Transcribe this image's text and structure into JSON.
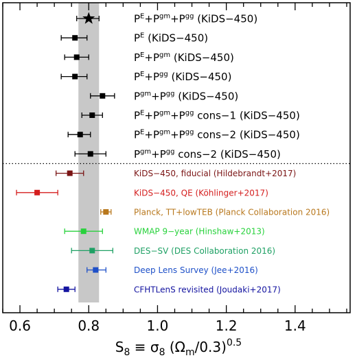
{
  "chart_data": {
    "type": "scatter",
    "subtype": "whisker-plot-with-horizontal-error-bars",
    "xlim": [
      0.55,
      1.56
    ],
    "xticks": [
      0.6,
      0.8,
      1.0,
      1.2,
      1.4
    ],
    "xtick_labels": [
      "0.6",
      "0.8",
      "1.0",
      "1.2",
      "1.4"
    ],
    "xlabel": {
      "base": "S",
      "sub": "8",
      "mid": " ≡ σ",
      "sub2": "8",
      "tail": " (Ω",
      "sub3": "m",
      "end": "/0.3)",
      "sup": "0.5"
    },
    "highlight_band": {
      "xmin": 0.77,
      "xmax": 0.83,
      "color": "#c8c8c8"
    },
    "separator_after_row": 8,
    "rows": [
      {
        "x": 0.8,
        "xerr_low": 0.035,
        "xerr_high": 0.03,
        "marker": "star",
        "color": "#000000",
        "label": [
          {
            "t": "P"
          },
          {
            "t": "E",
            "sup": 1
          },
          {
            "t": "+P"
          },
          {
            "t": "gm",
            "sup": 1
          },
          {
            "t": "+P"
          },
          {
            "t": "gg",
            "sup": 1
          },
          {
            "t": " (KiDS−450)"
          }
        ]
      },
      {
        "x": 0.76,
        "xerr_low": 0.04,
        "xerr_high": 0.035,
        "marker": "square",
        "color": "#000000",
        "label": [
          {
            "t": "P"
          },
          {
            "t": "E",
            "sup": 1
          },
          {
            "t": " (KiDS−450)"
          }
        ]
      },
      {
        "x": 0.765,
        "xerr_low": 0.035,
        "xerr_high": 0.035,
        "marker": "square",
        "color": "#000000",
        "label": [
          {
            "t": "P"
          },
          {
            "t": "E",
            "sup": 1
          },
          {
            "t": "+P"
          },
          {
            "t": "gm",
            "sup": 1
          },
          {
            "t": " (KiDS−450)"
          }
        ]
      },
      {
        "x": 0.76,
        "xerr_low": 0.04,
        "xerr_high": 0.035,
        "marker": "square",
        "color": "#000000",
        "label": [
          {
            "t": "P"
          },
          {
            "t": "E",
            "sup": 1
          },
          {
            "t": "+P"
          },
          {
            "t": "gg",
            "sup": 1
          },
          {
            "t": " (KiDS−450)"
          }
        ]
      },
      {
        "x": 0.84,
        "xerr_low": 0.035,
        "xerr_high": 0.035,
        "marker": "square",
        "color": "#000000",
        "label": [
          {
            "t": "P"
          },
          {
            "t": "gm",
            "sup": 1
          },
          {
            "t": "+P"
          },
          {
            "t": "gg",
            "sup": 1
          },
          {
            "t": " (KiDS−450)"
          }
        ]
      },
      {
        "x": 0.81,
        "xerr_low": 0.03,
        "xerr_high": 0.03,
        "marker": "square",
        "color": "#000000",
        "label": [
          {
            "t": "P"
          },
          {
            "t": "E",
            "sup": 1
          },
          {
            "t": "+P"
          },
          {
            "t": "gm",
            "sup": 1
          },
          {
            "t": "+P"
          },
          {
            "t": "gg",
            "sup": 1
          },
          {
            "t": " cons−1 (KiDS−450)"
          }
        ]
      },
      {
        "x": 0.775,
        "xerr_low": 0.035,
        "xerr_high": 0.03,
        "marker": "square",
        "color": "#000000",
        "label": [
          {
            "t": "P"
          },
          {
            "t": "E",
            "sup": 1
          },
          {
            "t": "+P"
          },
          {
            "t": "gm",
            "sup": 1
          },
          {
            "t": "+P"
          },
          {
            "t": "gg",
            "sup": 1
          },
          {
            "t": " cons−2 (KiDS−450)"
          }
        ]
      },
      {
        "x": 0.805,
        "xerr_low": 0.045,
        "xerr_high": 0.045,
        "marker": "square",
        "color": "#000000",
        "label": [
          {
            "t": "P"
          },
          {
            "t": "gm",
            "sup": 1
          },
          {
            "t": "+P"
          },
          {
            "t": "gg",
            "sup": 1
          },
          {
            "t": " cons−2 (KiDS−450)"
          }
        ]
      },
      {
        "x": 0.745,
        "xerr_low": 0.04,
        "xerr_high": 0.04,
        "marker": "square",
        "color": "#7a1414",
        "label": [
          {
            "t": "KiDS−450, fiducial (Hildebrandt+2017)"
          }
        ]
      },
      {
        "x": 0.65,
        "xerr_low": 0.06,
        "xerr_high": 0.06,
        "marker": "square",
        "color": "#d41e1e",
        "label": [
          {
            "t": "KiDS−450, QE (Köhlinger+2017)"
          }
        ]
      },
      {
        "x": 0.85,
        "xerr_low": 0.015,
        "xerr_high": 0.015,
        "marker": "square",
        "color": "#b8781e",
        "label": [
          {
            "t": "Planck, TT+lowTEB (Planck Collaboration 2016)"
          }
        ]
      },
      {
        "x": 0.785,
        "xerr_low": 0.055,
        "xerr_high": 0.055,
        "marker": "square",
        "color": "#28d23c",
        "label": [
          {
            "t": "WMAP 9−year (Hinshaw+2013)"
          }
        ]
      },
      {
        "x": 0.81,
        "xerr_low": 0.06,
        "xerr_high": 0.06,
        "marker": "square",
        "color": "#1ea064",
        "label": [
          {
            "t": "DES−SV (DES Collaboration 2016)"
          }
        ]
      },
      {
        "x": 0.82,
        "xerr_low": 0.025,
        "xerr_high": 0.03,
        "marker": "square",
        "color": "#1e50c8",
        "label": [
          {
            "t": "Deep Lens Survey (Jee+2016)"
          }
        ]
      },
      {
        "x": 0.735,
        "xerr_low": 0.025,
        "xerr_high": 0.025,
        "marker": "square",
        "color": "#1414a0",
        "label": [
          {
            "t": "CFHTLenS revisited (Joudaki+2017)"
          }
        ]
      }
    ]
  }
}
